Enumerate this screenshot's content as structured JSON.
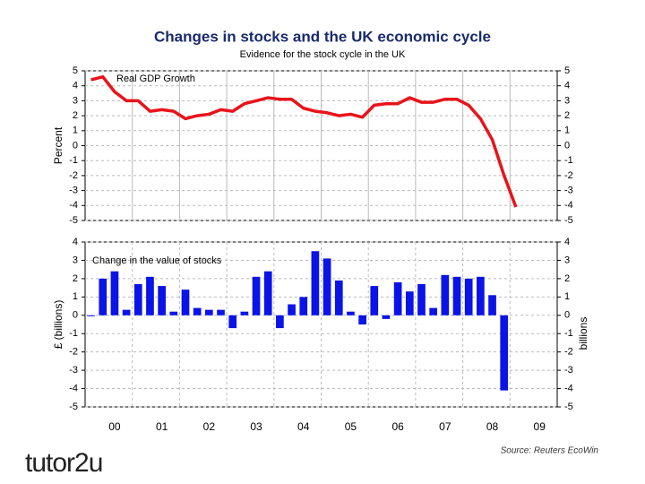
{
  "title": "Changes in stocks and the UK economic cycle",
  "subtitle": "Evidence for the stock cycle in the UK",
  "source": "Source: Reuters EcoWin",
  "logo": "tutor2u",
  "chart_data": [
    {
      "type": "line",
      "ylabel": "Percent",
      "series": [
        {
          "name": "Real GDP Growth",
          "color": "#e8141b",
          "values": [
            4.4,
            4.6,
            3.6,
            3.0,
            3.0,
            2.3,
            2.4,
            2.3,
            1.8,
            2.0,
            2.1,
            2.4,
            2.3,
            2.8,
            3.0,
            3.2,
            3.1,
            3.1,
            2.5,
            2.3,
            2.2,
            2.0,
            2.1,
            1.9,
            2.7,
            2.8,
            2.8,
            3.2,
            2.9,
            2.9,
            3.1,
            3.1,
            2.7,
            1.8,
            0.4,
            -2.0,
            -4.1,
            null,
            null,
            null
          ]
        }
      ],
      "ylim": [
        -5,
        5
      ],
      "yticks": [
        5,
        4,
        3,
        2,
        1,
        0,
        -1,
        -2,
        -3,
        -4,
        -5
      ],
      "grid": true
    },
    {
      "type": "bar",
      "ylabel": "£ (billions)",
      "y2label": "billions",
      "categories": [
        null,
        "00",
        null,
        null,
        null,
        "01",
        null,
        null,
        null,
        "02",
        null,
        null,
        null,
        "03",
        null,
        null,
        null,
        "04",
        null,
        null,
        null,
        "05",
        null,
        null,
        null,
        "06",
        null,
        null,
        null,
        "07",
        null,
        null,
        null,
        "08",
        null,
        null,
        null,
        "09",
        null,
        null
      ],
      "series": [
        {
          "name": "Change in the value of stocks",
          "color": "#0b14e6",
          "values": [
            0,
            2.0,
            2.4,
            0.3,
            1.7,
            2.1,
            1.6,
            0.2,
            1.4,
            0.4,
            0.3,
            0.3,
            -0.7,
            0.2,
            2.1,
            2.4,
            -0.7,
            0.6,
            1.0,
            3.5,
            3.1,
            1.9,
            0.2,
            -0.5,
            1.6,
            -0.2,
            1.8,
            1.3,
            1.7,
            0.4,
            2.2,
            2.1,
            2.0,
            2.1,
            1.1,
            -4.1,
            null,
            null,
            null,
            null
          ]
        }
      ],
      "ylim": [
        -5,
        4
      ],
      "yticks": [
        4,
        3,
        2,
        1,
        0,
        -1,
        -2,
        -3,
        -4,
        -5
      ],
      "grid": true
    }
  ]
}
